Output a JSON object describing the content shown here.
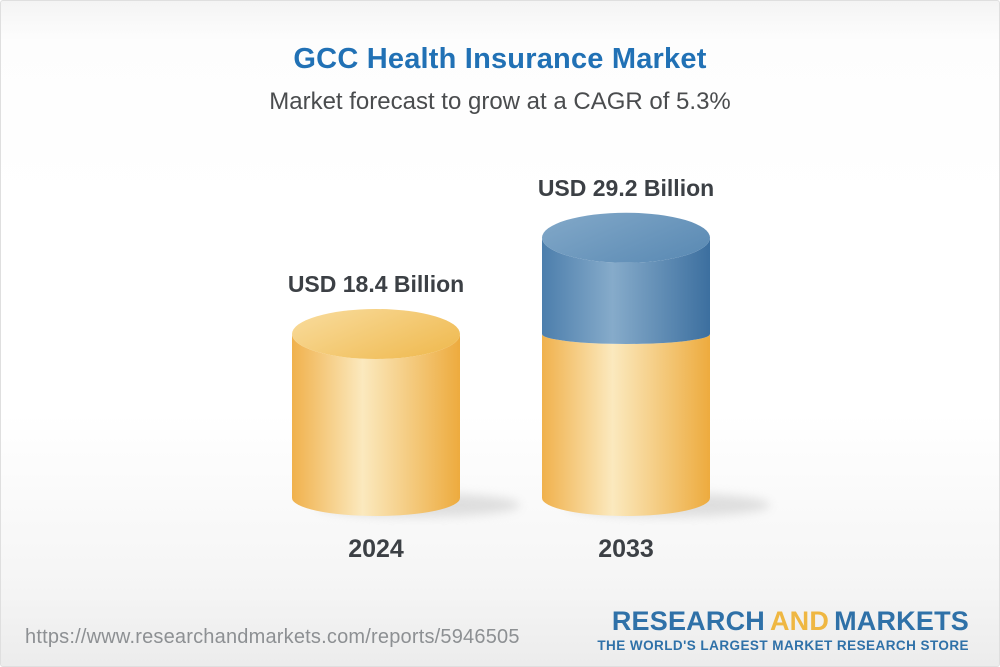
{
  "page": {
    "title": "GCC Health Insurance Market",
    "subtitle": "Market forecast to grow at a CAGR of 5.3%"
  },
  "chart_data": {
    "type": "bar",
    "style": "3d-cylinder",
    "categories": [
      "2024",
      "2033"
    ],
    "values": [
      18.4,
      29.2
    ],
    "unit": "USD Billion",
    "value_labels": [
      "USD 18.4 Billion",
      "USD 29.2 Billion"
    ],
    "title": "GCC Health Insurance Market",
    "subtitle": "Market forecast to grow at a CAGR of 5.3%",
    "cagr_percent": 5.3,
    "grid": false,
    "legend_position": "none",
    "stacked_hint": "2033 cylinder is amber up to the 2024 value (18.4) with blue growth segment on top",
    "colors": {
      "amber_edge": "#eeae44",
      "amber_center": "#fbe9be",
      "amber_top": "#f6d48a",
      "blue_edge": "#3c6f9f",
      "blue_center": "#86abca",
      "blue_top": "#6d98be",
      "title_blue": "#2171b5",
      "label_dark": "#3c4045"
    }
  },
  "footer": {
    "url": "https://www.researchandmarkets.com/reports/5946505",
    "logo": {
      "part1": "RESEARCH",
      "part2": "AND",
      "part3": "MARKETS",
      "tagline": "THE WORLD'S LARGEST MARKET RESEARCH STORE",
      "blue": "#2f71a8",
      "gold": "#efb742"
    }
  }
}
